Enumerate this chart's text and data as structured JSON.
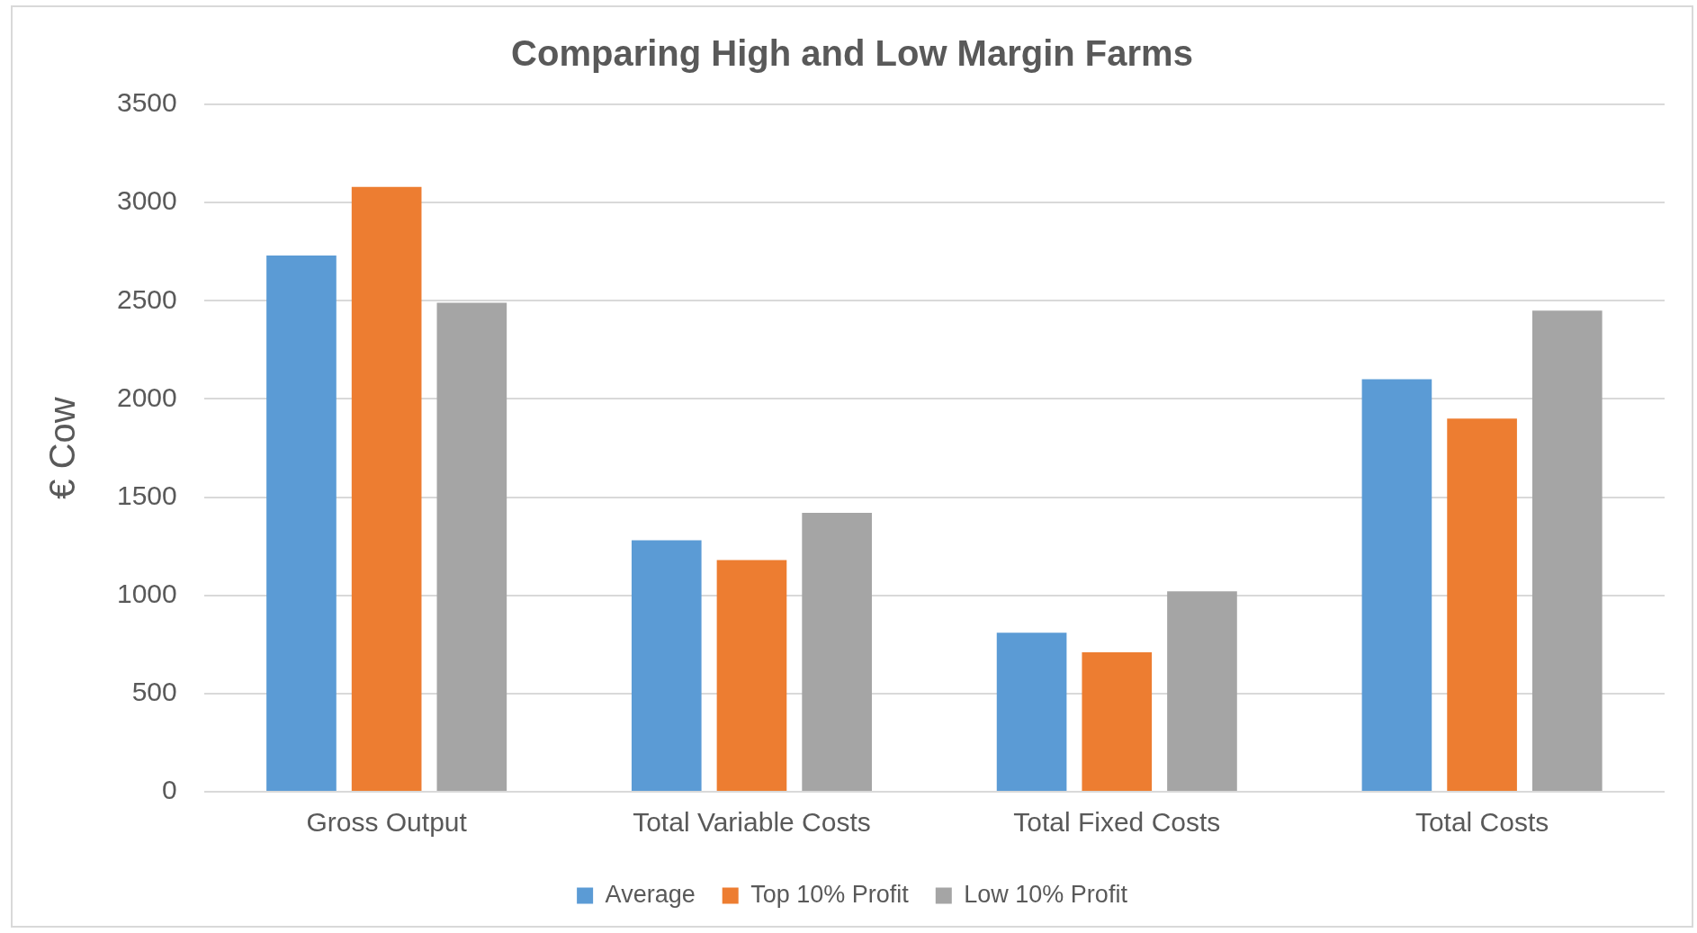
{
  "chart_data": {
    "type": "bar",
    "title": "Comparing High and Low Margin Farms",
    "ylabel": "€ Cow",
    "categories": [
      "Gross Output",
      "Total Variable Costs",
      "Total Fixed Costs",
      "Total Costs"
    ],
    "series": [
      {
        "name": "Average",
        "color": "#5b9bd5",
        "values": [
          2730,
          1280,
          810,
          2100
        ]
      },
      {
        "name": "Top 10% Profit",
        "color": "#ed7d31",
        "values": [
          3080,
          1180,
          710,
          1900
        ]
      },
      {
        "name": "Low 10% Profit",
        "color": "#a5a5a5",
        "values": [
          2490,
          1420,
          1020,
          2450
        ]
      }
    ],
    "ylim": [
      0,
      3500
    ],
    "yticks": [
      0,
      500,
      1000,
      1500,
      2000,
      2500,
      3000,
      3500
    ],
    "grid": "y",
    "legend": "bottom"
  }
}
